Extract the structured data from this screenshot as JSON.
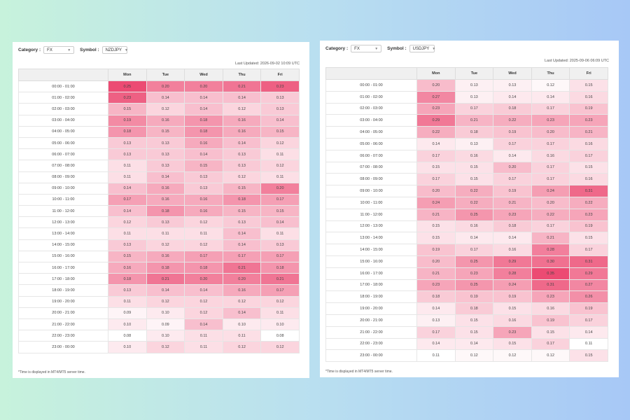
{
  "accent_color": "#ec4b73",
  "days": [
    "Mon",
    "Tue",
    "Wed",
    "Thu",
    "Fri"
  ],
  "panels": [
    {
      "category_label": "Category :",
      "category_value": "FX",
      "symbol_label": "Symbol :",
      "symbol_value": "NZDJPY",
      "last_updated": "Last Updated: 2026-09-02 10:09 UTC",
      "footnote": "*Time is displayed in MT4/MT5 server time.",
      "rows": [
        {
          "time": "00:00 - 01:00",
          "values": [
            "0.25",
            "0.20",
            "0.20",
            "0.21",
            "0.23"
          ]
        },
        {
          "time": "01:00 - 02:00",
          "values": [
            "0.23",
            "0.14",
            "0.14",
            "0.14",
            "0.13"
          ]
        },
        {
          "time": "02:00 - 03:00",
          "values": [
            "0.15",
            "0.12",
            "0.14",
            "0.12",
            "0.13"
          ]
        },
        {
          "time": "03:00 - 04:00",
          "values": [
            "0.19",
            "0.16",
            "0.18",
            "0.16",
            "0.14"
          ]
        },
        {
          "time": "04:00 - 05:00",
          "values": [
            "0.18",
            "0.15",
            "0.18",
            "0.16",
            "0.15"
          ]
        },
        {
          "time": "05:00 - 06:00",
          "values": [
            "0.13",
            "0.13",
            "0.16",
            "0.14",
            "0.12"
          ]
        },
        {
          "time": "06:00 - 07:00",
          "values": [
            "0.13",
            "0.13",
            "0.14",
            "0.13",
            "0.11"
          ]
        },
        {
          "time": "07:00 - 08:00",
          "values": [
            "0.11",
            "0.13",
            "0.15",
            "0.13",
            "0.12"
          ]
        },
        {
          "time": "08:00 - 09:00",
          "values": [
            "0.11",
            "0.14",
            "0.13",
            "0.12",
            "0.11"
          ]
        },
        {
          "time": "09:00 - 10:00",
          "values": [
            "0.14",
            "0.16",
            "0.13",
            "0.15",
            "0.20"
          ]
        },
        {
          "time": "10:00 - 11:00",
          "values": [
            "0.17",
            "0.16",
            "0.16",
            "0.18",
            "0.17"
          ]
        },
        {
          "time": "11:00 - 12:00",
          "values": [
            "0.14",
            "0.18",
            "0.16",
            "0.15",
            "0.15"
          ]
        },
        {
          "time": "12:00 - 13:00",
          "values": [
            "0.12",
            "0.13",
            "0.12",
            "0.13",
            "0.14"
          ]
        },
        {
          "time": "13:00 - 14:00",
          "values": [
            "0.11",
            "0.11",
            "0.11",
            "0.14",
            "0.11"
          ]
        },
        {
          "time": "14:00 - 15:00",
          "values": [
            "0.13",
            "0.12",
            "0.12",
            "0.14",
            "0.13"
          ]
        },
        {
          "time": "15:00 - 16:00",
          "values": [
            "0.15",
            "0.16",
            "0.17",
            "0.17",
            "0.17"
          ]
        },
        {
          "time": "16:00 - 17:00",
          "values": [
            "0.16",
            "0.18",
            "0.18",
            "0.21",
            "0.18"
          ]
        },
        {
          "time": "17:00 - 18:00",
          "values": [
            "0.18",
            "0.21",
            "0.20",
            "0.20",
            "0.21"
          ]
        },
        {
          "time": "18:00 - 19:00",
          "values": [
            "0.13",
            "0.14",
            "0.14",
            "0.16",
            "0.17"
          ]
        },
        {
          "time": "19:00 - 20:00",
          "values": [
            "0.11",
            "0.12",
            "0.12",
            "0.12",
            "0.12"
          ]
        },
        {
          "time": "20:00 - 21:00",
          "values": [
            "0.09",
            "0.10",
            "0.12",
            "0.14",
            "0.11"
          ]
        },
        {
          "time": "21:00 - 22:00",
          "values": [
            "0.10",
            "0.09",
            "0.14",
            "0.10",
            "0.10"
          ]
        },
        {
          "time": "22:00 - 23:00",
          "values": [
            "0.08",
            "0.10",
            "0.11",
            "0.11",
            "0.08"
          ]
        },
        {
          "time": "23:00 - 00:00",
          "values": [
            "0.10",
            "0.12",
            "0.11",
            "0.12",
            "0.12"
          ]
        }
      ]
    },
    {
      "category_label": "Category :",
      "category_value": "FX",
      "symbol_label": "Symbol :",
      "symbol_value": "USDJPY",
      "last_updated": "Last Updated: 2025-09-06 06:09 UTC",
      "footnote": "*Time is displayed in MT4/MT5 server time.",
      "rows": [
        {
          "time": "00:00 - 01:00",
          "values": [
            "0.20",
            "0.13",
            "0.13",
            "0.12",
            "0.15"
          ]
        },
        {
          "time": "01:00 - 02:00",
          "values": [
            "0.27",
            "0.13",
            "0.14",
            "0.14",
            "0.16"
          ]
        },
        {
          "time": "02:00 - 03:00",
          "values": [
            "0.23",
            "0.17",
            "0.18",
            "0.17",
            "0.19"
          ]
        },
        {
          "time": "03:00 - 04:00",
          "values": [
            "0.29",
            "0.21",
            "0.22",
            "0.23",
            "0.23"
          ]
        },
        {
          "time": "04:00 - 05:00",
          "values": [
            "0.22",
            "0.18",
            "0.19",
            "0.20",
            "0.21"
          ]
        },
        {
          "time": "05:00 - 06:00",
          "values": [
            "0.14",
            "0.13",
            "0.17",
            "0.17",
            "0.16"
          ]
        },
        {
          "time": "06:00 - 07:00",
          "values": [
            "0.17",
            "0.16",
            "0.14",
            "0.16",
            "0.17"
          ]
        },
        {
          "time": "07:00 - 08:00",
          "values": [
            "0.15",
            "0.15",
            "0.20",
            "0.17",
            "0.15"
          ]
        },
        {
          "time": "08:00 - 09:00",
          "values": [
            "0.17",
            "0.15",
            "0.17",
            "0.17",
            "0.16"
          ]
        },
        {
          "time": "09:00 - 10:00",
          "values": [
            "0.20",
            "0.22",
            "0.19",
            "0.24",
            "0.31"
          ]
        },
        {
          "time": "10:00 - 11:00",
          "values": [
            "0.24",
            "0.22",
            "0.21",
            "0.20",
            "0.22"
          ]
        },
        {
          "time": "11:00 - 12:00",
          "values": [
            "0.21",
            "0.25",
            "0.23",
            "0.22",
            "0.23"
          ]
        },
        {
          "time": "12:00 - 13:00",
          "values": [
            "0.15",
            "0.16",
            "0.18",
            "0.17",
            "0.19"
          ]
        },
        {
          "time": "13:00 - 14:00",
          "values": [
            "0.15",
            "0.14",
            "0.14",
            "0.21",
            "0.15"
          ]
        },
        {
          "time": "14:00 - 15:00",
          "values": [
            "0.19",
            "0.17",
            "0.16",
            "0.28",
            "0.17"
          ]
        },
        {
          "time": "15:00 - 16:00",
          "values": [
            "0.20",
            "0.25",
            "0.29",
            "0.30",
            "0.31"
          ]
        },
        {
          "time": "16:00 - 17:00",
          "values": [
            "0.21",
            "0.23",
            "0.28",
            "0.35",
            "0.29"
          ]
        },
        {
          "time": "17:00 - 18:00",
          "values": [
            "0.23",
            "0.25",
            "0.24",
            "0.31",
            "0.27"
          ]
        },
        {
          "time": "18:00 - 19:00",
          "values": [
            "0.18",
            "0.19",
            "0.19",
            "0.23",
            "0.26"
          ]
        },
        {
          "time": "19:00 - 20:00",
          "values": [
            "0.14",
            "0.18",
            "0.15",
            "0.16",
            "0.19"
          ]
        },
        {
          "time": "20:00 - 21:00",
          "values": [
            "0.13",
            "0.15",
            "0.16",
            "0.19",
            "0.17"
          ]
        },
        {
          "time": "21:00 - 22:00",
          "values": [
            "0.17",
            "0.15",
            "0.23",
            "0.15",
            "0.14"
          ]
        },
        {
          "time": "22:00 - 23:00",
          "values": [
            "0.14",
            "0.14",
            "0.15",
            "0.17",
            "0.11"
          ]
        },
        {
          "time": "23:00 - 00:00",
          "values": [
            "0.11",
            "0.12",
            "0.12",
            "0.12",
            "0.15"
          ]
        }
      ]
    }
  ]
}
